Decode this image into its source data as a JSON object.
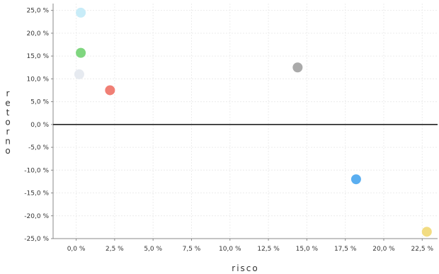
{
  "chart_data": {
    "type": "scatter",
    "title": "",
    "xlabel": "risco",
    "ylabel": "retorno",
    "xlim": [
      -1.5,
      23.5
    ],
    "ylim": [
      -25,
      26.5
    ],
    "x_ticks": [
      0.0,
      2.5,
      5.0,
      7.5,
      10.0,
      12.5,
      15.0,
      17.5,
      20.0,
      22.5
    ],
    "x_tick_labels": [
      "0,0 %",
      "2,5 %",
      "5,0 %",
      "7,5 %",
      "10,0 %",
      "12,5 %",
      "15,0 %",
      "17,5 %",
      "20,0 %",
      "22,5 %"
    ],
    "y_ticks": [
      25.0,
      20.0,
      15.0,
      10.0,
      5.0,
      0.0,
      -5.0,
      -10.0,
      -15.0,
      -20.0,
      -25.0
    ],
    "y_tick_labels": [
      "25,0 %",
      "20,0 %",
      "15,0 %",
      "10,0 %",
      "5,0 %",
      "0,0 %",
      "-5,0 %",
      "-10,0 %",
      "-15,0 %",
      "-20,0 %",
      "-25,0 %"
    ],
    "grid": true,
    "legend": "none",
    "zero_line": true,
    "points": [
      {
        "x": 0.3,
        "y": 24.5,
        "color": "#c8ecf8"
      },
      {
        "x": 0.3,
        "y": 15.7,
        "color": "#7fd67f"
      },
      {
        "x": 0.2,
        "y": 11.0,
        "color": "#e6eaf0"
      },
      {
        "x": 2.2,
        "y": 7.5,
        "color": "#f07f75"
      },
      {
        "x": 14.4,
        "y": 12.5,
        "color": "#aaaaaa"
      },
      {
        "x": 18.2,
        "y": -12.0,
        "color": "#5aaef0"
      },
      {
        "x": 22.8,
        "y": -23.5,
        "color": "#f2dc82"
      }
    ]
  }
}
